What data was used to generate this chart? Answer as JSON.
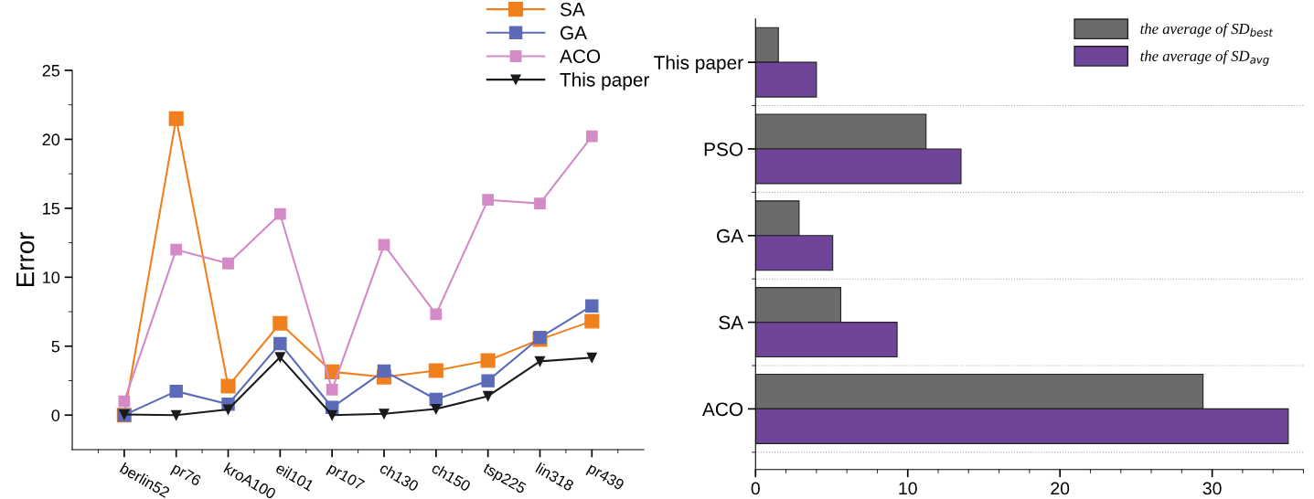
{
  "chart_data": [
    {
      "type": "line",
      "ylabel": "Error",
      "categories": [
        "berlin52",
        "pr76",
        "kroA100",
        "eil101",
        "pr107",
        "ch130",
        "ch150",
        "tsp225",
        "lin318",
        "pr439"
      ],
      "series": [
        {
          "name": "SA",
          "color": "#f07f1e",
          "marker": "square",
          "values": [
            0,
            21.5,
            2.1,
            6.66,
            3.14,
            2.76,
            3.23,
            3.96,
            5.49,
            6.81
          ]
        },
        {
          "name": "GA",
          "color": "#5b6bb8",
          "marker": "square",
          "values": [
            0,
            1.73,
            0.79,
            5.19,
            0.56,
            3.2,
            1.14,
            2.49,
            5.63,
            7.92
          ]
        },
        {
          "name": "ACO",
          "color": "#d58ac8",
          "marker": "square",
          "values": [
            1.0,
            12.0,
            11.0,
            14.58,
            1.85,
            12.35,
            7.31,
            15.61,
            15.35,
            20.22
          ]
        },
        {
          "name": "This paper",
          "color": "#1a1a1a",
          "marker": "triangle",
          "values": [
            0.05,
            0,
            0.41,
            4.2,
            0,
            0.1,
            0.44,
            1.38,
            3.9,
            4.17
          ]
        }
      ],
      "ylim": [
        -2.5,
        25
      ],
      "yticks": [
        0,
        5,
        10,
        15,
        20,
        25
      ],
      "legend": "top right",
      "grid": false,
      "line_style": "solid"
    },
    {
      "type": "bar",
      "orientation": "horizontal",
      "categories": [
        "This paper",
        "PSO",
        "GA",
        "SA",
        "ACO"
      ],
      "series": [
        {
          "name": "the average of SD$_{best}$",
          "color": "#6b6b6b",
          "values": [
            1.5,
            11.2,
            2.86,
            5.6,
            29.4
          ]
        },
        {
          "name": "the average of SD$_{avg}$",
          "color": "#6f4599",
          "values": [
            4.0,
            13.5,
            5.07,
            9.3,
            35
          ]
        }
      ],
      "xlim": [
        0,
        35
      ],
      "xticks": [
        0,
        10,
        20,
        30
      ],
      "legend": "top right",
      "grid": "y"
    }
  ]
}
